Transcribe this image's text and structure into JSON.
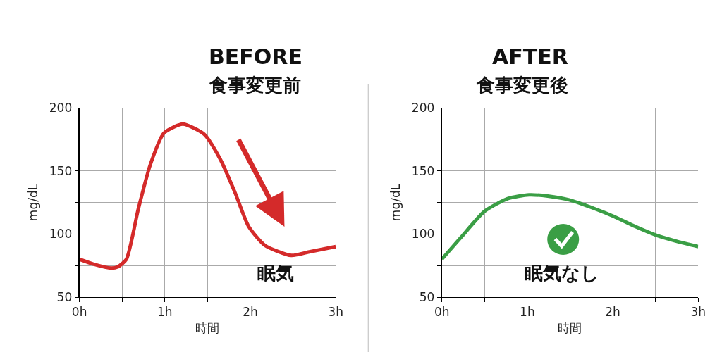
{
  "chart_data": [
    {
      "type": "line",
      "title": "BEFORE",
      "subtitle": "食事変更前",
      "xlabel": "時間",
      "ylabel": "mg/dL",
      "x": [
        0,
        0.17,
        0.37,
        0.45,
        0.55,
        0.69,
        0.83,
        0.99,
        1.21,
        1.46,
        1.65,
        1.82,
        1.98,
        2.17,
        2.48,
        2.7,
        3.0
      ],
      "series": [
        {
          "color": "#d42a2a",
          "values": [
            80,
            76,
            73,
            74,
            80,
            120,
            155,
            180,
            187,
            179,
            159,
            133,
            106,
            91,
            83,
            86,
            90
          ]
        }
      ],
      "xlim": [
        0,
        3
      ],
      "xticks": [
        {
          "value": 0,
          "label": "0h"
        },
        {
          "value": 0.5,
          "label": null
        },
        {
          "value": 1,
          "label": "1h"
        },
        {
          "value": 1.5,
          "label": null
        },
        {
          "value": 2,
          "label": "2h"
        },
        {
          "value": 2.5,
          "label": null
        },
        {
          "value": 3,
          "label": "3h"
        }
      ],
      "ylim": [
        50,
        200
      ],
      "yticks": [
        50,
        {
          "value": 75,
          "label": null
        },
        100,
        {
          "value": 125,
          "label": null
        },
        150,
        {
          "value": 175,
          "label": null
        },
        200
      ],
      "annotations": [
        "眠気"
      ],
      "grid": true,
      "marker": "none",
      "line_style": "solid"
    },
    {
      "type": "line",
      "title": "AFTER",
      "subtitle": "食事変更後",
      "xlabel": "時間",
      "ylabel": "mg/dL",
      "x": [
        0,
        0.22,
        0.5,
        0.77,
        1.02,
        1.24,
        1.49,
        1.79,
        2.01,
        2.26,
        2.51,
        2.76,
        3.0
      ],
      "series": [
        {
          "color": "#3a9e45",
          "values": [
            80,
            97,
            118,
            128,
            131,
            130,
            127,
            120,
            114,
            106,
            99,
            94,
            90
          ]
        }
      ],
      "xlim": [
        0,
        3
      ],
      "xticks": [
        {
          "value": 0,
          "label": "0h"
        },
        {
          "value": 0.5,
          "label": null
        },
        {
          "value": 1,
          "label": "1h"
        },
        {
          "value": 1.5,
          "label": null
        },
        {
          "value": 2,
          "label": "2h"
        },
        {
          "value": 2.5,
          "label": null
        },
        {
          "value": 3,
          "label": "3h"
        }
      ],
      "ylim": [
        50,
        200
      ],
      "yticks": [
        50,
        {
          "value": 75,
          "label": null
        },
        100,
        {
          "value": 125,
          "label": null
        },
        150,
        {
          "value": 175,
          "label": null
        },
        200
      ],
      "annotations": [
        "眠気なし"
      ],
      "grid": true,
      "marker": "none",
      "line_style": "solid"
    }
  ]
}
